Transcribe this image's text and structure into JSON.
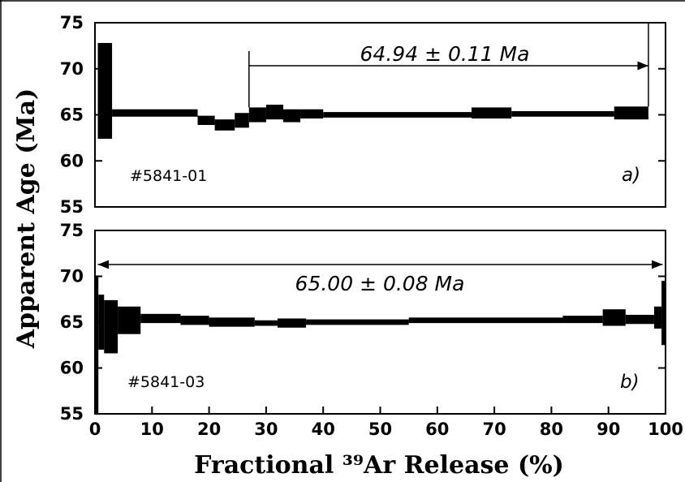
{
  "chart_data": {
    "type": "age-spectrum",
    "xlabel": "Fractional ³⁹Ar Release (%)",
    "ylabel": "Apparent Age (Ma)",
    "xlim": [
      0,
      100
    ],
    "xticks": [
      0,
      10,
      20,
      30,
      40,
      50,
      60,
      70,
      80,
      90,
      100
    ],
    "colors": {
      "steps": "#000000",
      "axes": "#000000",
      "background": "#ffffff"
    },
    "panels": [
      {
        "id": "a",
        "panel_label": "a)",
        "sample": "#5841-01",
        "ylim": [
          55,
          75
        ],
        "yticks": [
          55,
          60,
          65,
          70,
          75
        ],
        "plateau_label": "64.94 ± 0.11 Ma",
        "plateau_range": [
          27,
          97
        ],
        "steps": [
          {
            "x0": 0.5,
            "x1": 3,
            "age": 67.6,
            "err": 5.2
          },
          {
            "x0": 3,
            "x1": 18,
            "age": 65.2,
            "err": 0.4
          },
          {
            "x0": 18,
            "x1": 21,
            "age": 64.4,
            "err": 0.5
          },
          {
            "x0": 21,
            "x1": 24.5,
            "age": 63.9,
            "err": 0.6
          },
          {
            "x0": 24.5,
            "x1": 27,
            "age": 64.4,
            "err": 0.8
          },
          {
            "x0": 27,
            "x1": 30,
            "age": 65.0,
            "err": 0.8
          },
          {
            "x0": 30,
            "x1": 33,
            "age": 65.3,
            "err": 0.8
          },
          {
            "x0": 33,
            "x1": 36,
            "age": 64.9,
            "err": 0.7
          },
          {
            "x0": 36,
            "x1": 40,
            "age": 65.1,
            "err": 0.5
          },
          {
            "x0": 40,
            "x1": 66,
            "age": 65.0,
            "err": 0.3
          },
          {
            "x0": 66,
            "x1": 73,
            "age": 65.2,
            "err": 0.6
          },
          {
            "x0": 73,
            "x1": 91,
            "age": 65.1,
            "err": 0.3
          },
          {
            "x0": 91,
            "x1": 97,
            "age": 65.2,
            "err": 0.7
          }
        ]
      },
      {
        "id": "b",
        "panel_label": "b)",
        "sample": "#5841-03",
        "ylim": [
          55,
          75
        ],
        "yticks": [
          55,
          60,
          65,
          70,
          75
        ],
        "plateau_label": "65.00 ± 0.08 Ma",
        "plateau_range": [
          0.5,
          99.5
        ],
        "steps": [
          {
            "x0": 0,
            "x1": 0.6,
            "age": 62.5,
            "err": 7.5
          },
          {
            "x0": 0.6,
            "x1": 1.6,
            "age": 65.0,
            "err": 3.0
          },
          {
            "x0": 1.6,
            "x1": 4,
            "age": 64.5,
            "err": 2.9
          },
          {
            "x0": 4,
            "x1": 8,
            "age": 65.2,
            "err": 1.5
          },
          {
            "x0": 8,
            "x1": 15,
            "age": 65.4,
            "err": 0.5
          },
          {
            "x0": 15,
            "x1": 20,
            "age": 65.2,
            "err": 0.5
          },
          {
            "x0": 20,
            "x1": 28,
            "age": 65.0,
            "err": 0.5
          },
          {
            "x0": 28,
            "x1": 32,
            "age": 64.9,
            "err": 0.3
          },
          {
            "x0": 32,
            "x1": 37,
            "age": 64.9,
            "err": 0.5
          },
          {
            "x0": 37,
            "x1": 55,
            "age": 65.0,
            "err": 0.3
          },
          {
            "x0": 55,
            "x1": 82,
            "age": 65.2,
            "err": 0.3
          },
          {
            "x0": 82,
            "x1": 89,
            "age": 65.3,
            "err": 0.4
          },
          {
            "x0": 89,
            "x1": 93,
            "age": 65.5,
            "err": 0.9
          },
          {
            "x0": 93,
            "x1": 98,
            "age": 65.3,
            "err": 0.5
          },
          {
            "x0": 98,
            "x1": 99.3,
            "age": 65.5,
            "err": 1.2
          },
          {
            "x0": 99.3,
            "x1": 100,
            "age": 66.0,
            "err": 3.5
          }
        ]
      }
    ]
  }
}
